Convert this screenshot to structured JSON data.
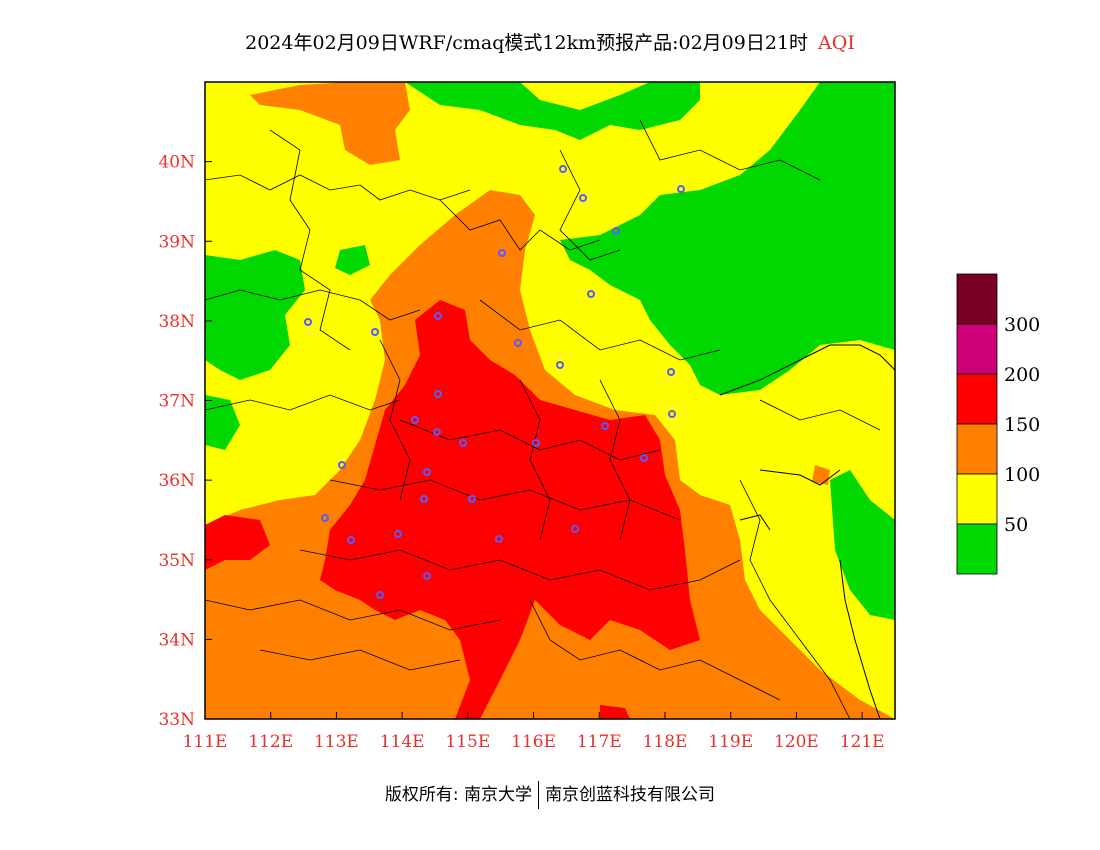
{
  "title": {
    "main": "2024年02月09日WRF/cmaq模式12km预报产品:02月09日21时",
    "variable": "AQI"
  },
  "map": {
    "lon_ticks": [
      "111E",
      "112E",
      "113E",
      "114E",
      "115E",
      "116E",
      "117E",
      "118E",
      "119E",
      "120E",
      "121E"
    ],
    "lat_ticks": [
      "33N",
      "34N",
      "35N",
      "36N",
      "37N",
      "38N",
      "39N",
      "40N"
    ],
    "lon_range": [
      111,
      121.5
    ],
    "lat_range": [
      33,
      41
    ],
    "colors": {
      "green": "#00d800",
      "yellow": "#ffff00",
      "orange": "#ff7f00",
      "red": "#ff0000",
      "magenta": "#cc0077",
      "maroon": "#7a0023",
      "station": "#5a5aff",
      "label": "#e8302c"
    }
  },
  "legend": {
    "labels": [
      "300",
      "200",
      "150",
      "100",
      "50"
    ],
    "colors": [
      "#7a0023",
      "#cc0077",
      "#ff0000",
      "#ff7f00",
      "#ffff00",
      "#00d800"
    ]
  },
  "footer": {
    "copyright": "版权所有: 南京大学",
    "company": "南京创蓝科技有限公司"
  }
}
